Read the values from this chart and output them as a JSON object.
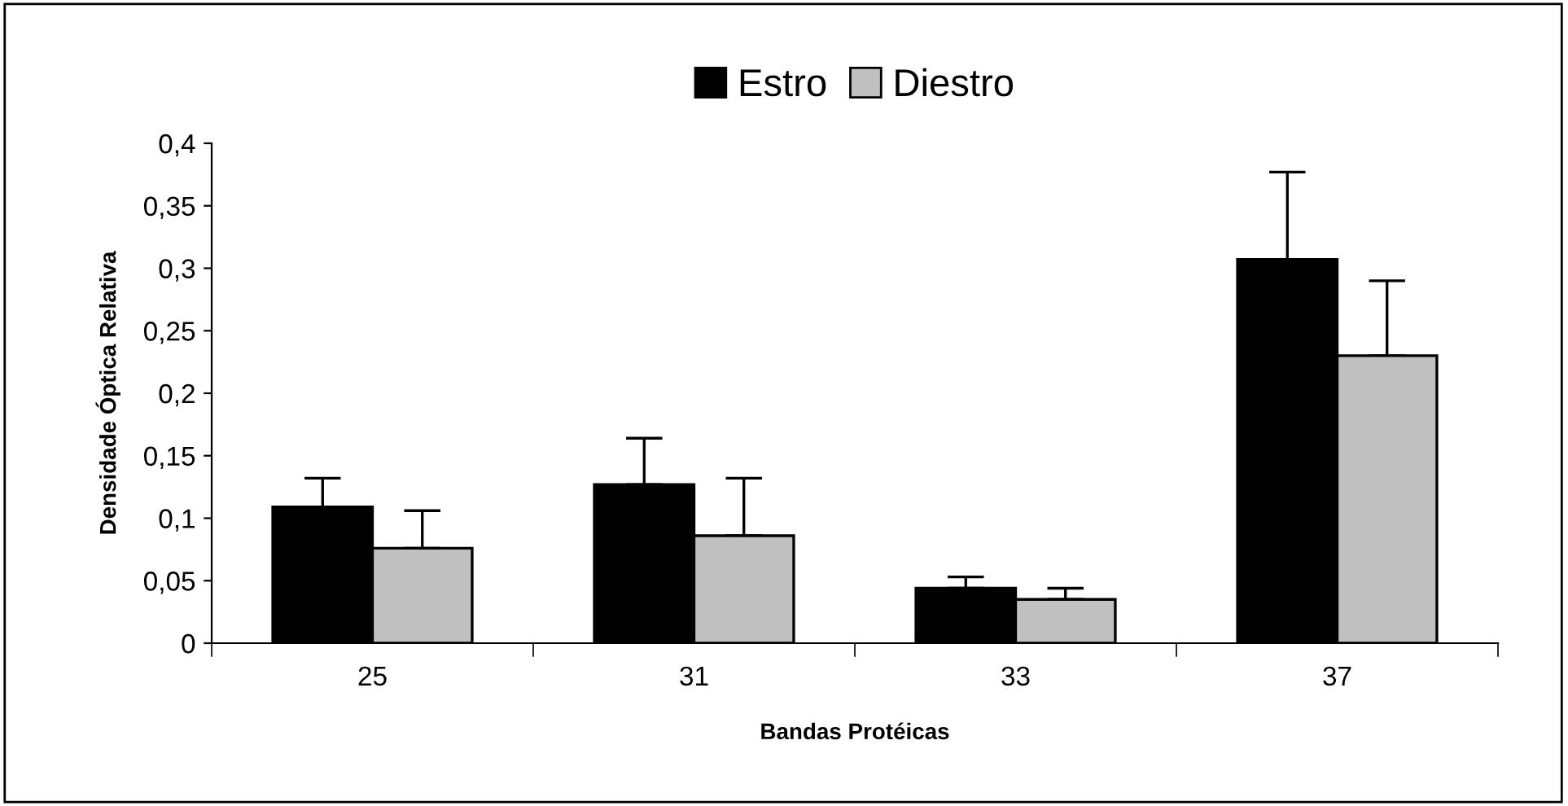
{
  "chart_data": {
    "type": "bar",
    "xlabel": "Bandas Protéicas",
    "ylabel": "Densidade Óptica Relativa",
    "categories": [
      "25",
      "31",
      "33",
      "37"
    ],
    "series": [
      {
        "name": "Estro",
        "color": "#000000",
        "values": [
          0.109,
          0.127,
          0.044,
          0.307
        ],
        "errors": [
          [
            0.109,
            0.132
          ],
          [
            0.127,
            0.164
          ],
          [
            0.044,
            0.053
          ],
          [
            0.307,
            0.377
          ]
        ]
      },
      {
        "name": "Diestro",
        "color": "#c0c0c0",
        "values": [
          0.076,
          0.086,
          0.035,
          0.23
        ],
        "errors": [
          [
            0.076,
            0.106
          ],
          [
            0.086,
            0.132
          ],
          [
            0.035,
            0.044
          ],
          [
            0.23,
            0.29
          ]
        ]
      }
    ],
    "ylim": [
      0,
      0.4
    ],
    "yticks": [
      0,
      {
        "value": 0.05,
        "label": "0,05"
      },
      {
        "value": 0.1,
        "label": "0,1"
      },
      {
        "value": 0.15,
        "label": "0,15"
      },
      {
        "value": 0.2,
        "label": "0,2"
      },
      {
        "value": 0.25,
        "label": "0,25"
      },
      {
        "value": 0.3,
        "label": "0,3"
      },
      {
        "value": 0.35,
        "label": "0,35"
      },
      {
        "value": 0.4,
        "label": "0,4"
      }
    ],
    "grid": false,
    "legend": "top"
  }
}
